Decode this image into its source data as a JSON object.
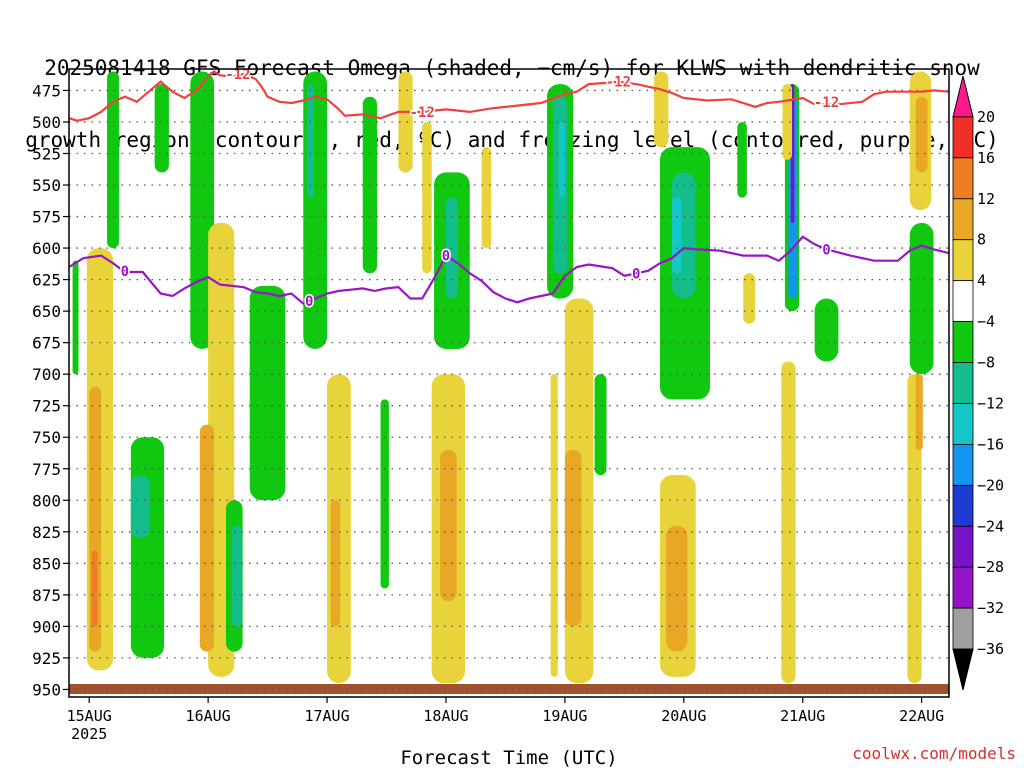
{
  "chart_data": {
    "type": "heatmap",
    "title_lines": [
      "2025081418 GFS Forecast Omega (shaded, −cm/s) for KLWS with dendritic snow",
      "growth region (contoured, red, ºC) and freezing level (contoured, purple, ºC)"
    ],
    "xlabel": "Forecast Time (UTC)",
    "ylabel": "",
    "x_ticks": [
      "15AUG",
      "16AUG",
      "17AUG",
      "18AUG",
      "19AUG",
      "20AUG",
      "21AUG",
      "22AUG"
    ],
    "x_year": "2025",
    "y_ticks": [
      475,
      500,
      525,
      550,
      575,
      600,
      625,
      650,
      675,
      700,
      725,
      750,
      775,
      800,
      825,
      850,
      875,
      900,
      925,
      950
    ],
    "ylim": [
      458,
      956
    ],
    "xlim_days": [
      14.83,
      22.23
    ],
    "grid": true,
    "colorbar": {
      "labels": [
        "20",
        "16",
        "12",
        "8",
        "4",
        "−4",
        "−8",
        "−12",
        "−16",
        "−20",
        "−24",
        "−28",
        "−32",
        "−36"
      ],
      "colors": [
        "#ff1a8c",
        "#f03028",
        "#ee7d24",
        "#e8a826",
        "#e8d43a",
        "#ffffff",
        "#10c810",
        "#14be8c",
        "#14c8c8",
        "#1496f0",
        "#1e3cd2",
        "#7814c8",
        "#9614c8",
        "#a0a0a0",
        "#000000"
      ]
    },
    "contours": [
      {
        "label": "-12",
        "color": "#f04040",
        "points": [
          [
            14.83,
            497
          ],
          [
            14.9,
            499
          ],
          [
            15.0,
            497
          ],
          [
            15.1,
            492
          ],
          [
            15.2,
            484
          ],
          [
            15.3,
            480
          ],
          [
            15.4,
            484
          ],
          [
            15.5,
            476
          ],
          [
            15.6,
            468
          ],
          [
            15.7,
            476
          ],
          [
            15.8,
            481
          ],
          [
            15.9,
            475
          ],
          [
            16.0,
            464
          ],
          [
            16.05,
            460
          ],
          [
            16.1,
            463
          ],
          [
            16.2,
            464
          ],
          [
            16.3,
            462
          ],
          [
            16.4,
            466
          ],
          [
            16.45,
            472
          ],
          [
            16.5,
            480
          ],
          [
            16.6,
            484
          ],
          [
            16.7,
            485
          ],
          [
            16.8,
            483
          ],
          [
            16.9,
            480
          ],
          [
            17.0,
            482
          ],
          [
            17.1,
            490
          ],
          [
            17.15,
            495
          ],
          [
            17.3,
            494
          ],
          [
            17.45,
            497
          ],
          [
            17.6,
            492
          ],
          [
            17.8,
            492
          ],
          [
            18.0,
            490
          ],
          [
            18.2,
            492
          ],
          [
            18.4,
            489
          ],
          [
            18.6,
            487
          ],
          [
            18.8,
            485
          ],
          [
            19.0,
            478
          ],
          [
            19.1,
            476
          ],
          [
            19.2,
            470
          ],
          [
            19.35,
            469
          ],
          [
            19.45,
            468
          ],
          [
            19.6,
            470
          ],
          [
            19.7,
            472
          ],
          [
            19.8,
            474
          ],
          [
            19.9,
            477
          ],
          [
            20.0,
            481
          ],
          [
            20.2,
            483
          ],
          [
            20.4,
            482
          ],
          [
            20.6,
            488
          ],
          [
            20.7,
            485
          ],
          [
            20.8,
            484
          ],
          [
            21.0,
            481
          ],
          [
            21.1,
            486
          ],
          [
            21.3,
            486
          ],
          [
            21.5,
            484
          ],
          [
            21.6,
            478
          ],
          [
            21.7,
            476
          ],
          [
            21.9,
            476
          ],
          [
            22.0,
            476
          ],
          [
            22.1,
            475
          ],
          [
            22.23,
            476
          ]
        ],
        "labels_at": [
          [
            16.25,
            462
          ],
          [
            17.8,
            492
          ],
          [
            19.45,
            468
          ],
          [
            21.2,
            484
          ]
        ]
      },
      {
        "label": "0",
        "color": "#9a14c8",
        "points": [
          [
            14.83,
            615
          ],
          [
            14.95,
            608
          ],
          [
            15.1,
            606
          ],
          [
            15.2,
            612
          ],
          [
            15.3,
            619
          ],
          [
            15.45,
            619
          ],
          [
            15.6,
            636
          ],
          [
            15.7,
            638
          ],
          [
            15.8,
            632
          ],
          [
            15.9,
            627
          ],
          [
            16.0,
            623
          ],
          [
            16.1,
            629
          ],
          [
            16.2,
            630
          ],
          [
            16.3,
            631
          ],
          [
            16.4,
            635
          ],
          [
            16.5,
            636
          ],
          [
            16.6,
            638
          ],
          [
            16.7,
            636
          ],
          [
            16.8,
            644
          ],
          [
            16.9,
            640
          ],
          [
            17.0,
            636
          ],
          [
            17.1,
            634
          ],
          [
            17.2,
            633
          ],
          [
            17.3,
            632
          ],
          [
            17.4,
            634
          ],
          [
            17.5,
            632
          ],
          [
            17.6,
            631
          ],
          [
            17.7,
            640
          ],
          [
            17.8,
            640
          ],
          [
            17.9,
            624
          ],
          [
            18.0,
            606
          ],
          [
            18.1,
            612
          ],
          [
            18.2,
            620
          ],
          [
            18.3,
            626
          ],
          [
            18.4,
            635
          ],
          [
            18.5,
            640
          ],
          [
            18.6,
            643
          ],
          [
            18.7,
            640
          ],
          [
            18.8,
            638
          ],
          [
            18.9,
            636
          ],
          [
            19.0,
            622
          ],
          [
            19.1,
            615
          ],
          [
            19.2,
            613
          ],
          [
            19.4,
            616
          ],
          [
            19.5,
            622
          ],
          [
            19.6,
            620
          ],
          [
            19.7,
            618
          ],
          [
            19.8,
            612
          ],
          [
            19.9,
            608
          ],
          [
            20.0,
            600
          ],
          [
            20.1,
            601
          ],
          [
            20.3,
            602
          ],
          [
            20.5,
            606
          ],
          [
            20.7,
            606
          ],
          [
            20.8,
            610
          ],
          [
            20.9,
            602
          ],
          [
            21.0,
            591
          ],
          [
            21.1,
            597
          ],
          [
            21.2,
            601
          ],
          [
            21.4,
            606
          ],
          [
            21.6,
            610
          ],
          [
            21.8,
            610
          ],
          [
            21.9,
            602
          ],
          [
            22.0,
            598
          ],
          [
            22.1,
            601
          ],
          [
            22.23,
            604
          ]
        ],
        "labels_at": [
          [
            15.3,
            618
          ],
          [
            16.85,
            642
          ],
          [
            18.0,
            606
          ],
          [
            19.6,
            620
          ],
          [
            21.2,
            601
          ]
        ]
      }
    ],
    "shading_blobs": [
      {
        "value": "−4",
        "x": 14.86,
        "w": 0.05,
        "y0": 610,
        "y1": 700
      },
      {
        "value": "4",
        "x": 14.98,
        "w": 0.22,
        "y0": 600,
        "y1": 935
      },
      {
        "value": "8",
        "x": 15.0,
        "w": 0.1,
        "y0": 710,
        "y1": 920
      },
      {
        "value": "12",
        "x": 15.02,
        "w": 0.05,
        "y0": 840,
        "y1": 900
      },
      {
        "value": "−4",
        "x": 15.35,
        "w": 0.28,
        "y0": 750,
        "y1": 925
      },
      {
        "value": "−8",
        "x": 15.35,
        "w": 0.16,
        "y0": 780,
        "y1": 830
      },
      {
        "value": "−4",
        "x": 15.15,
        "w": 0.1,
        "y0": 460,
        "y1": 600
      },
      {
        "value": "−4",
        "x": 15.55,
        "w": 0.12,
        "y0": 470,
        "y1": 540
      },
      {
        "value": "−4",
        "x": 15.85,
        "w": 0.2,
        "y0": 460,
        "y1": 680
      },
      {
        "value": "4",
        "x": 16.0,
        "w": 0.22,
        "y0": 580,
        "y1": 940
      },
      {
        "value": "8",
        "x": 15.93,
        "w": 0.12,
        "y0": 740,
        "y1": 920
      },
      {
        "value": "−4",
        "x": 16.15,
        "w": 0.14,
        "y0": 800,
        "y1": 920
      },
      {
        "value": "−8",
        "x": 16.2,
        "w": 0.08,
        "y0": 820,
        "y1": 900
      },
      {
        "value": "−4",
        "x": 16.35,
        "w": 0.3,
        "y0": 630,
        "y1": 800
      },
      {
        "value": "−4",
        "x": 16.8,
        "w": 0.2,
        "y0": 460,
        "y1": 680
      },
      {
        "value": "−8",
        "x": 16.83,
        "w": 0.06,
        "y0": 470,
        "y1": 560
      },
      {
        "value": "4",
        "x": 17.0,
        "w": 0.2,
        "y0": 700,
        "y1": 945
      },
      {
        "value": "8",
        "x": 17.03,
        "w": 0.08,
        "y0": 800,
        "y1": 900
      },
      {
        "value": "−4",
        "x": 17.3,
        "w": 0.12,
        "y0": 480,
        "y1": 620
      },
      {
        "value": "−4",
        "x": 17.45,
        "w": 0.07,
        "y0": 720,
        "y1": 870
      },
      {
        "value": "4",
        "x": 17.6,
        "w": 0.12,
        "y0": 460,
        "y1": 540
      },
      {
        "value": "4",
        "x": 17.8,
        "w": 0.08,
        "y0": 500,
        "y1": 620
      },
      {
        "value": "−4",
        "x": 17.9,
        "w": 0.3,
        "y0": 540,
        "y1": 680
      },
      {
        "value": "−8",
        "x": 18.0,
        "w": 0.1,
        "y0": 560,
        "y1": 640
      },
      {
        "value": "4",
        "x": 17.88,
        "w": 0.28,
        "y0": 700,
        "y1": 945
      },
      {
        "value": "8",
        "x": 17.95,
        "w": 0.14,
        "y0": 760,
        "y1": 880
      },
      {
        "value": "4",
        "x": 18.3,
        "w": 0.08,
        "y0": 520,
        "y1": 600
      },
      {
        "value": "−4",
        "x": 18.85,
        "w": 0.22,
        "y0": 470,
        "y1": 640
      },
      {
        "value": "−8",
        "x": 18.9,
        "w": 0.12,
        "y0": 480,
        "y1": 620
      },
      {
        "value": "−12",
        "x": 18.95,
        "w": 0.05,
        "y0": 500,
        "y1": 560
      },
      {
        "value": "4",
        "x": 19.0,
        "w": 0.24,
        "y0": 640,
        "y1": 945
      },
      {
        "value": "8",
        "x": 19.0,
        "w": 0.14,
        "y0": 760,
        "y1": 900
      },
      {
        "value": "4",
        "x": 18.88,
        "w": 0.06,
        "y0": 700,
        "y1": 940
      },
      {
        "value": "−4",
        "x": 19.25,
        "w": 0.1,
        "y0": 700,
        "y1": 780
      },
      {
        "value": "−4",
        "x": 19.8,
        "w": 0.42,
        "y0": 520,
        "y1": 720
      },
      {
        "value": "−8",
        "x": 19.9,
        "w": 0.2,
        "y0": 540,
        "y1": 640
      },
      {
        "value": "−12",
        "x": 19.9,
        "w": 0.08,
        "y0": 560,
        "y1": 620
      },
      {
        "value": "4",
        "x": 19.8,
        "w": 0.3,
        "y0": 780,
        "y1": 940
      },
      {
        "value": "8",
        "x": 19.85,
        "w": 0.18,
        "y0": 820,
        "y1": 920
      },
      {
        "value": "4",
        "x": 19.75,
        "w": 0.12,
        "y0": 460,
        "y1": 520
      },
      {
        "value": "−4",
        "x": 20.45,
        "w": 0.08,
        "y0": 500,
        "y1": 560
      },
      {
        "value": "4",
        "x": 20.5,
        "w": 0.1,
        "y0": 620,
        "y1": 660
      },
      {
        "value": "−4",
        "x": 20.85,
        "w": 0.12,
        "y0": 470,
        "y1": 650
      },
      {
        "value": "−16",
        "x": 20.88,
        "w": 0.07,
        "y0": 480,
        "y1": 640
      },
      {
        "value": "−24",
        "x": 20.9,
        "w": 0.03,
        "y0": 470,
        "y1": 580
      },
      {
        "value": "4",
        "x": 20.83,
        "w": 0.08,
        "y0": 470,
        "y1": 530
      },
      {
        "value": "8",
        "x": 20.85,
        "w": 0.05,
        "y0": 700,
        "y1": 800
      },
      {
        "value": "4",
        "x": 20.82,
        "w": 0.12,
        "y0": 690,
        "y1": 945
      },
      {
        "value": "−4",
        "x": 21.1,
        "w": 0.2,
        "y0": 640,
        "y1": 690
      },
      {
        "value": "−4",
        "x": 21.9,
        "w": 0.2,
        "y0": 580,
        "y1": 700
      },
      {
        "value": "4",
        "x": 21.9,
        "w": 0.18,
        "y0": 460,
        "y1": 570
      },
      {
        "value": "8",
        "x": 21.95,
        "w": 0.1,
        "y0": 480,
        "y1": 540
      },
      {
        "value": "4",
        "x": 21.88,
        "w": 0.12,
        "y0": 700,
        "y1": 945
      },
      {
        "value": "8",
        "x": 21.95,
        "w": 0.06,
        "y0": 700,
        "y1": 760
      }
    ]
  },
  "credit": "coolwx.com/models"
}
